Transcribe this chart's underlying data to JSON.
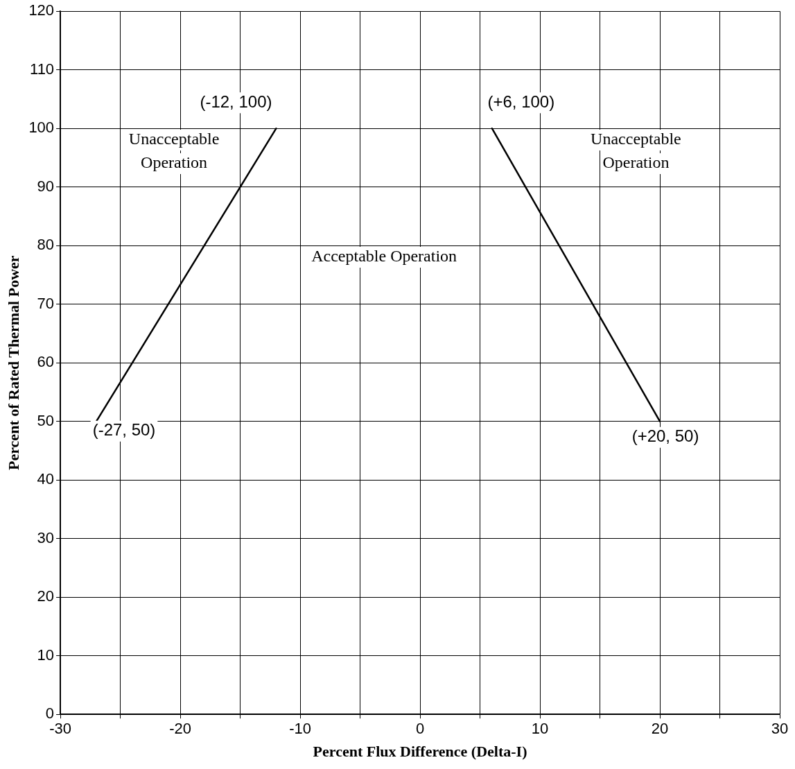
{
  "chart_data": {
    "type": "line",
    "xlabel": "Percent Flux Difference (Delta-I)",
    "ylabel": "Percent of Rated Thermal Power",
    "xlim": [
      -30,
      30
    ],
    "xticks": [
      -30,
      {
        "value": -25,
        "label": null
      },
      -20,
      {
        "value": -15,
        "label": null
      },
      -10,
      {
        "value": -5,
        "label": null
      },
      0,
      {
        "value": 5,
        "label": null
      },
      10,
      {
        "value": 15,
        "label": null
      },
      20,
      {
        "value": 25,
        "label": null
      },
      30
    ],
    "ylim": [
      0,
      120
    ],
    "yticks": [
      0,
      10,
      20,
      30,
      40,
      50,
      60,
      70,
      80,
      90,
      100,
      110,
      120
    ],
    "grid": true,
    "legend": false,
    "marker": "none",
    "line_style": "solid",
    "series": [
      {
        "color": "#000000",
        "x": [
          -27,
          -12
        ],
        "values": [
          50,
          100
        ]
      },
      {
        "color": "#000000",
        "x": [
          6,
          20
        ],
        "values": [
          100,
          50
        ]
      }
    ],
    "annotations": [
      {
        "text": "(-12, 100)",
        "x": -12,
        "y": 100
      },
      {
        "text": "(+6, 100)",
        "x": 6,
        "y": 100
      },
      {
        "text": "(-27, 50)",
        "x": -27,
        "y": 50
      },
      {
        "text": "(+20, 50)",
        "x": 20,
        "y": 50
      },
      "Unacceptable\nOperation",
      "Unacceptable\nOperation",
      "Acceptable Operation"
    ]
  }
}
